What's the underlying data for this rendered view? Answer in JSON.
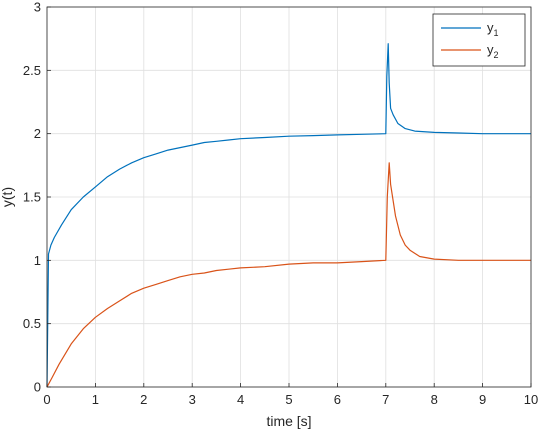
{
  "chart_data": {
    "type": "line",
    "xlabel": "time [s]",
    "ylabel": "y(t)",
    "xlim": [
      0,
      10
    ],
    "ylim": [
      0,
      3
    ],
    "xticks": [
      0,
      1,
      2,
      3,
      4,
      5,
      6,
      7,
      8,
      9,
      10
    ],
    "xtick_labels": [
      "0",
      "1",
      "2",
      "3",
      "4",
      "5",
      "6",
      "7",
      "8",
      "9",
      "10"
    ],
    "yticks": [
      0,
      0.5,
      1,
      1.5,
      2,
      2.5,
      3
    ],
    "ytick_labels": [
      "0",
      "0.5",
      "1",
      "1.5",
      "2",
      "2.5",
      "3"
    ],
    "grid": true,
    "legend_position": "top-right",
    "series": [
      {
        "name": "y1",
        "legend_base": "y",
        "legend_sub": "1",
        "color": "#0072BD",
        "x": [
          0,
          0.03,
          0.08,
          0.15,
          0.3,
          0.5,
          0.75,
          1.0,
          1.25,
          1.5,
          1.75,
          2.0,
          2.25,
          2.5,
          2.75,
          3.0,
          3.25,
          3.5,
          3.75,
          4.0,
          4.5,
          5.0,
          5.5,
          6.0,
          6.5,
          7.0,
          7.02,
          7.05,
          7.07,
          7.1,
          7.15,
          7.25,
          7.4,
          7.6,
          8.0,
          8.5,
          9.0,
          9.5,
          10.0
        ],
        "y": [
          0,
          1.05,
          1.12,
          1.18,
          1.28,
          1.4,
          1.5,
          1.58,
          1.66,
          1.72,
          1.77,
          1.81,
          1.84,
          1.87,
          1.89,
          1.91,
          1.93,
          1.94,
          1.95,
          1.96,
          1.97,
          1.98,
          1.985,
          1.99,
          1.995,
          2.0,
          2.45,
          2.71,
          2.4,
          2.2,
          2.15,
          2.08,
          2.04,
          2.02,
          2.01,
          2.005,
          2.0,
          2.0,
          2.0
        ]
      },
      {
        "name": "y2",
        "legend_base": "y",
        "legend_sub": "2",
        "color": "#D95319",
        "x": [
          0,
          0.1,
          0.25,
          0.5,
          0.75,
          1.0,
          1.25,
          1.5,
          1.75,
          2.0,
          2.25,
          2.5,
          2.75,
          3.0,
          3.25,
          3.5,
          3.75,
          4.0,
          4.5,
          5.0,
          5.5,
          6.0,
          6.5,
          7.0,
          7.03,
          7.07,
          7.1,
          7.2,
          7.3,
          7.4,
          7.5,
          7.7,
          8.0,
          8.5,
          9.0,
          9.5,
          10.0
        ],
        "y": [
          0,
          0.07,
          0.18,
          0.34,
          0.46,
          0.55,
          0.62,
          0.68,
          0.74,
          0.78,
          0.81,
          0.84,
          0.87,
          0.89,
          0.9,
          0.92,
          0.93,
          0.94,
          0.95,
          0.97,
          0.98,
          0.98,
          0.99,
          1.0,
          1.5,
          1.77,
          1.6,
          1.35,
          1.2,
          1.12,
          1.08,
          1.03,
          1.01,
          1.0,
          1.0,
          1.0,
          1.0
        ]
      }
    ]
  }
}
